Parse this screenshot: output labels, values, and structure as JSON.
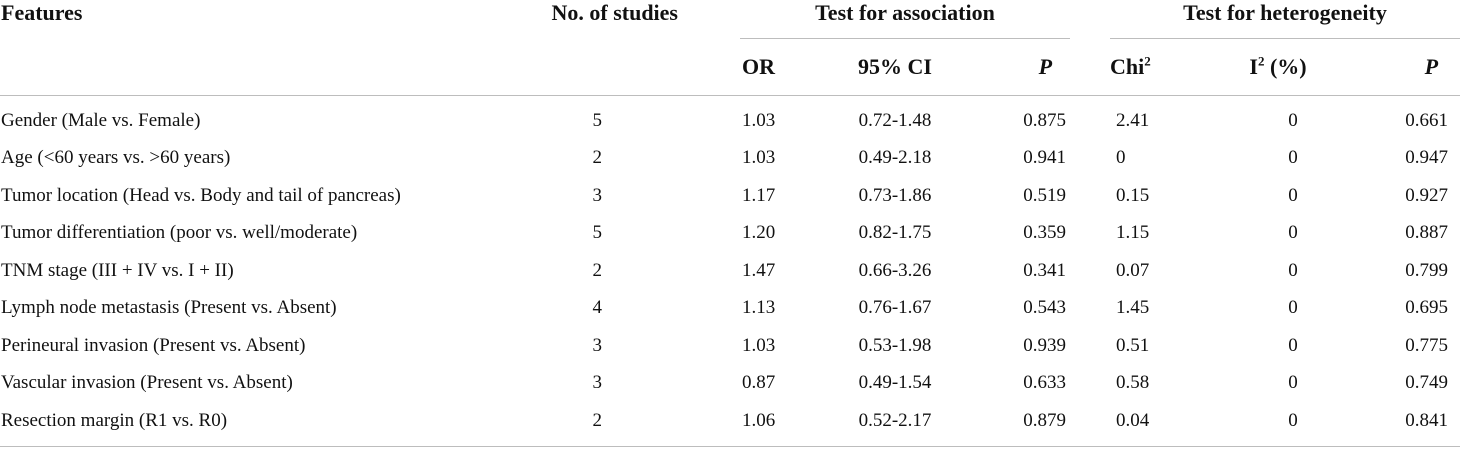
{
  "table": {
    "headers": {
      "features": "Features",
      "studies": "No. of studies",
      "association_group": "Test for association",
      "heterogeneity_group": "Test for heterogeneity",
      "or": "OR",
      "ci": "95% CI",
      "p_assoc": "P",
      "chi_base": "Chi",
      "chi_sup": "2",
      "i_base": "I",
      "i_sup": "2",
      "i_tail": " (%)",
      "p_het": "P"
    },
    "rows": [
      {
        "feature": "Gender (Male vs. Female)",
        "studies": "5",
        "or": "1.03",
        "ci": "0.72-1.48",
        "p": "0.875",
        "chi2": "2.41",
        "i2": "0",
        "ph": "0.661"
      },
      {
        "feature": "Age (<60 years vs. >60 years)",
        "studies": "2",
        "or": "1.03",
        "ci": "0.49-2.18",
        "p": "0.941",
        "chi2": "0",
        "i2": "0",
        "ph": "0.947"
      },
      {
        "feature": "Tumor location (Head vs. Body and tail of pancreas)",
        "studies": "3",
        "or": "1.17",
        "ci": "0.73-1.86",
        "p": "0.519",
        "chi2": "0.15",
        "i2": "0",
        "ph": "0.927"
      },
      {
        "feature": "Tumor differentiation (poor vs. well/moderate)",
        "studies": "5",
        "or": "1.20",
        "ci": "0.82-1.75",
        "p": "0.359",
        "chi2": "1.15",
        "i2": "0",
        "ph": "0.887"
      },
      {
        "feature": "TNM stage (III + IV vs. I + II)",
        "studies": "2",
        "or": "1.47",
        "ci": "0.66-3.26",
        "p": "0.341",
        "chi2": "0.07",
        "i2": "0",
        "ph": "0.799"
      },
      {
        "feature": "Lymph node metastasis (Present vs. Absent)",
        "studies": "4",
        "or": "1.13",
        "ci": "0.76-1.67",
        "p": "0.543",
        "chi2": "1.45",
        "i2": "0",
        "ph": "0.695"
      },
      {
        "feature": "Perineural invasion (Present vs. Absent)",
        "studies": "3",
        "or": "1.03",
        "ci": "0.53-1.98",
        "p": "0.939",
        "chi2": "0.51",
        "i2": "0",
        "ph": "0.775"
      },
      {
        "feature": "Vascular invasion (Present vs. Absent)",
        "studies": "3",
        "or": "0.87",
        "ci": "0.49-1.54",
        "p": "0.633",
        "chi2": "0.58",
        "i2": "0",
        "ph": "0.749"
      },
      {
        "feature": "Resection margin (R1 vs. R0)",
        "studies": "2",
        "or": "1.06",
        "ci": "0.52-2.17",
        "p": "0.879",
        "chi2": "0.04",
        "i2": "0",
        "ph": "0.841"
      }
    ]
  }
}
